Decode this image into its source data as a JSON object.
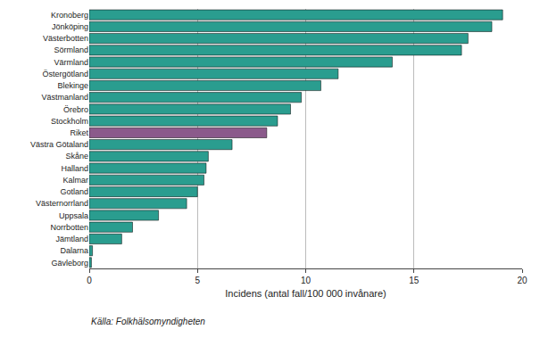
{
  "chart_data": {
    "type": "bar",
    "orientation": "horizontal",
    "categories": [
      "Kronoberg",
      "Jönköping",
      "Västerbotten",
      "Sörmland",
      "Värmland",
      "Östergötland",
      "Blekinge",
      "Västmanland",
      "Örebro",
      "Stockholm",
      "Riket",
      "Västra Götaland",
      "Skåne",
      "Halland",
      "Kalmar",
      "Gotland",
      "Västernorrland",
      "Uppsala",
      "Norrbotten",
      "Jämtland",
      "Dalarna",
      "Gävleborg"
    ],
    "values": [
      19.1,
      18.6,
      17.5,
      17.2,
      14.0,
      11.5,
      10.7,
      9.8,
      9.3,
      8.7,
      8.2,
      6.6,
      5.5,
      5.4,
      5.3,
      5.0,
      4.5,
      3.2,
      2.0,
      1.5,
      0.15,
      0.1
    ],
    "colors": [
      "#2a9d8f",
      "#2a9d8f",
      "#2a9d8f",
      "#2a9d8f",
      "#2a9d8f",
      "#2a9d8f",
      "#2a9d8f",
      "#2a9d8f",
      "#2a9d8f",
      "#2a9d8f",
      "#8B5A8B",
      "#2a9d8f",
      "#2a9d8f",
      "#2a9d8f",
      "#2a9d8f",
      "#2a9d8f",
      "#2a9d8f",
      "#2a9d8f",
      "#2a9d8f",
      "#2a9d8f",
      "#2a9d8f",
      "#2a9d8f"
    ],
    "xlabel": "Incidens (antal fall/100 000 invånare)",
    "annotation": "Källa: Folkhälsomyndigheten",
    "xlim": [
      0,
      20
    ],
    "xticks": [
      0,
      5,
      10,
      15,
      20
    ],
    "grid": true
  }
}
